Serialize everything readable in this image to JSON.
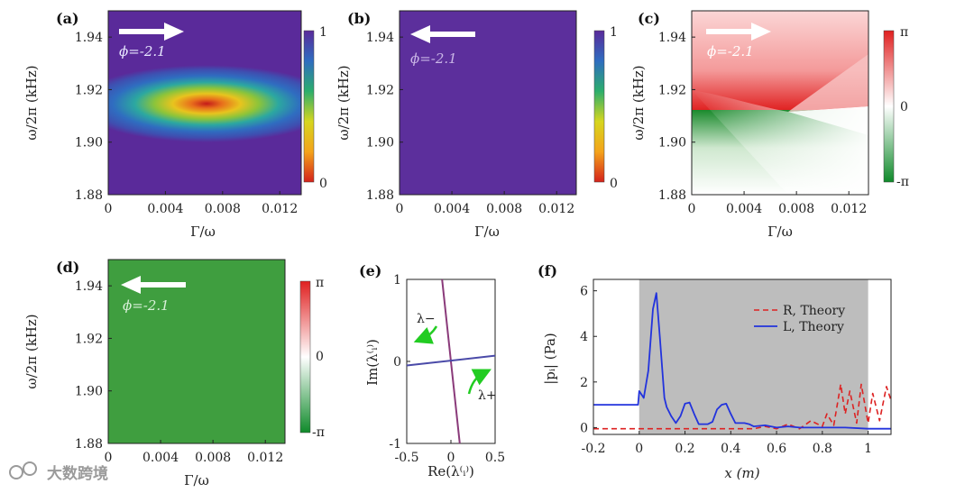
{
  "watermark": "大数跨境",
  "colors": {
    "viridis_dark": "#5a2a9a",
    "green": "#0f8a2a",
    "red": "#e02020",
    "gray_shade": "#bfbfbf",
    "blue_line": "#2233dd",
    "red_line": "#dd2222"
  },
  "chart_data": [
    {
      "panel": "(a)",
      "type": "heatmap",
      "xlabel": "Γ/ω",
      "ylabel": "ω/2π (kHz)",
      "xlim": [
        0,
        0.0135
      ],
      "ylim": [
        1.88,
        1.95
      ],
      "xticks": [
        "0",
        "0.004",
        "0.008",
        "0.012"
      ],
      "xtick_values": [
        0,
        0.004,
        0.008,
        0.012
      ],
      "yticks": [
        "1.88",
        "1.90",
        "1.92",
        "1.94"
      ],
      "ytick_values": [
        1.88,
        1.9,
        1.92,
        1.94
      ],
      "colorbar": {
        "ticks": [
          "1",
          "0"
        ],
        "range": [
          0,
          1
        ]
      },
      "arrow": "right",
      "annotation": "ϕ=-2.1",
      "description_value": {
        "min_at": [
          0.0065,
          1.912
        ],
        "min_value": 0.05
      }
    },
    {
      "panel": "(b)",
      "type": "heatmap",
      "xlabel": "Γ/ω",
      "ylabel": "ω/2π (kHz)",
      "xlim": [
        0,
        0.0135
      ],
      "ylim": [
        1.88,
        1.95
      ],
      "xticks": [
        "0",
        "0.004",
        "0.008",
        "0.012"
      ],
      "xtick_values": [
        0,
        0.004,
        0.008,
        0.012
      ],
      "yticks": [
        "1.88",
        "1.90",
        "1.92",
        "1.94"
      ],
      "ytick_values": [
        1.88,
        1.9,
        1.92,
        1.94
      ],
      "colorbar": {
        "ticks": [
          "1",
          "0"
        ],
        "range": [
          0,
          1
        ]
      },
      "arrow": "left",
      "annotation": "ϕ=-2.1",
      "uniform_value": 0.97
    },
    {
      "panel": "(c)",
      "type": "heatmap",
      "xlabel": "Γ/ω",
      "ylabel": "ω/2π (kHz)",
      "xlim": [
        0,
        0.0135
      ],
      "ylim": [
        1.88,
        1.95
      ],
      "xticks": [
        "0",
        "0.004",
        "0.008",
        "0.012"
      ],
      "xtick_values": [
        0,
        0.004,
        0.008,
        0.012
      ],
      "yticks": [
        "1.88",
        "1.90",
        "1.92",
        "1.94"
      ],
      "ytick_values": [
        1.88,
        1.9,
        1.92,
        1.94
      ],
      "colorbar": {
        "ticks": [
          "π",
          "0",
          "-π"
        ],
        "range": [
          -3.1416,
          3.1416
        ]
      },
      "arrow": "right",
      "annotation": "ϕ=-2.1"
    },
    {
      "panel": "(d)",
      "type": "heatmap",
      "xlabel": "Γ/ω",
      "ylabel": "ω/2π (kHz)",
      "xlim": [
        0,
        0.0135
      ],
      "ylim": [
        1.88,
        1.95
      ],
      "xticks": [
        "0",
        "0.004",
        "0.008",
        "0.012"
      ],
      "xtick_values": [
        0,
        0.004,
        0.008,
        0.012
      ],
      "yticks": [
        "1.88",
        "1.90",
        "1.92",
        "1.94"
      ],
      "ytick_values": [
        1.88,
        1.9,
        1.92,
        1.94
      ],
      "colorbar": {
        "ticks": [
          "π",
          "0",
          "-π"
        ],
        "range": [
          -3.1416,
          3.1416
        ]
      },
      "arrow": "left",
      "annotation": "ϕ=-2.1",
      "uniform_value": -2.1
    },
    {
      "panel": "(e)",
      "type": "line",
      "xlabel": "Re(λ⁽ᵢ⁾)",
      "ylabel": "Im(λ⁽ᵢ⁾)",
      "xlim": [
        -0.5,
        0.5
      ],
      "ylim": [
        -1,
        1
      ],
      "xticks": [
        "-0.5",
        "0",
        "0.5"
      ],
      "xtick_values": [
        -0.5,
        0,
        0.5
      ],
      "yticks": [
        "1",
        "0",
        "-1"
      ],
      "ytick_values": [
        1,
        0,
        -1
      ],
      "series": [
        {
          "name": "λ−",
          "x": [
            -0.1,
            0.1
          ],
          "y": [
            1.0,
            -1.0
          ]
        },
        {
          "name": "λ+",
          "x": [
            -0.5,
            0.5
          ],
          "y": [
            -0.05,
            0.07
          ]
        }
      ],
      "labels": [
        "λ−",
        "λ+"
      ]
    },
    {
      "panel": "(f)",
      "type": "line",
      "xlabel": "x (m)",
      "ylabel": "|pᵢ| (Pa)",
      "xlim": [
        -0.2,
        1.1
      ],
      "ylim": [
        -0.3,
        6.5
      ],
      "xticks": [
        "-0.2",
        "0",
        "0.2",
        "0.4",
        "0.6",
        "0.8",
        "1"
      ],
      "xtick_values": [
        -0.2,
        0,
        0.2,
        0.4,
        0.6,
        0.8,
        1.0
      ],
      "yticks": [
        "0",
        "2",
        "4",
        "6"
      ],
      "ytick_values": [
        0,
        2,
        4,
        6
      ],
      "shaded_region": [
        0,
        1.0
      ],
      "series": [
        {
          "name": "R, Theory",
          "style": "dashed",
          "x": [
            -0.2,
            0.5,
            0.55,
            0.6,
            0.65,
            0.7,
            0.75,
            0.8,
            0.82,
            0.85,
            0.88,
            0.9,
            0.92,
            0.95,
            0.97,
            1.0,
            1.02,
            1.05,
            1.08,
            1.1
          ],
          "y": [
            -0.05,
            -0.05,
            0.05,
            -0.05,
            0.15,
            -0.05,
            0.3,
            0.05,
            0.6,
            0.1,
            1.9,
            0.6,
            1.6,
            0.2,
            1.9,
            0.2,
            1.5,
            0.3,
            1.8,
            1.2
          ]
        },
        {
          "name": "L, Theory",
          "style": "solid",
          "x": [
            -0.2,
            -0.005,
            0.0,
            0.02,
            0.04,
            0.06,
            0.075,
            0.09,
            0.11,
            0.12,
            0.14,
            0.16,
            0.18,
            0.2,
            0.22,
            0.24,
            0.26,
            0.28,
            0.3,
            0.32,
            0.34,
            0.36,
            0.38,
            0.4,
            0.42,
            0.44,
            0.46,
            0.48,
            0.5,
            0.55,
            0.6,
            0.65,
            0.7,
            0.75,
            0.8,
            0.9,
            1.0,
            1.1
          ],
          "y": [
            1.0,
            1.0,
            1.6,
            1.3,
            2.5,
            5.2,
            5.9,
            4.0,
            1.3,
            0.9,
            0.5,
            0.2,
            0.5,
            1.05,
            1.1,
            0.6,
            0.15,
            0.15,
            0.15,
            0.25,
            0.8,
            1.0,
            1.05,
            0.6,
            0.2,
            0.2,
            0.2,
            0.15,
            0.05,
            0.1,
            0.0,
            0.05,
            0.0,
            0.0,
            0.0,
            0.0,
            -0.05,
            -0.05
          ]
        }
      ],
      "legend": [
        "R, Theory",
        "L, Theory"
      ],
      "legend_position": "top-right"
    }
  ]
}
